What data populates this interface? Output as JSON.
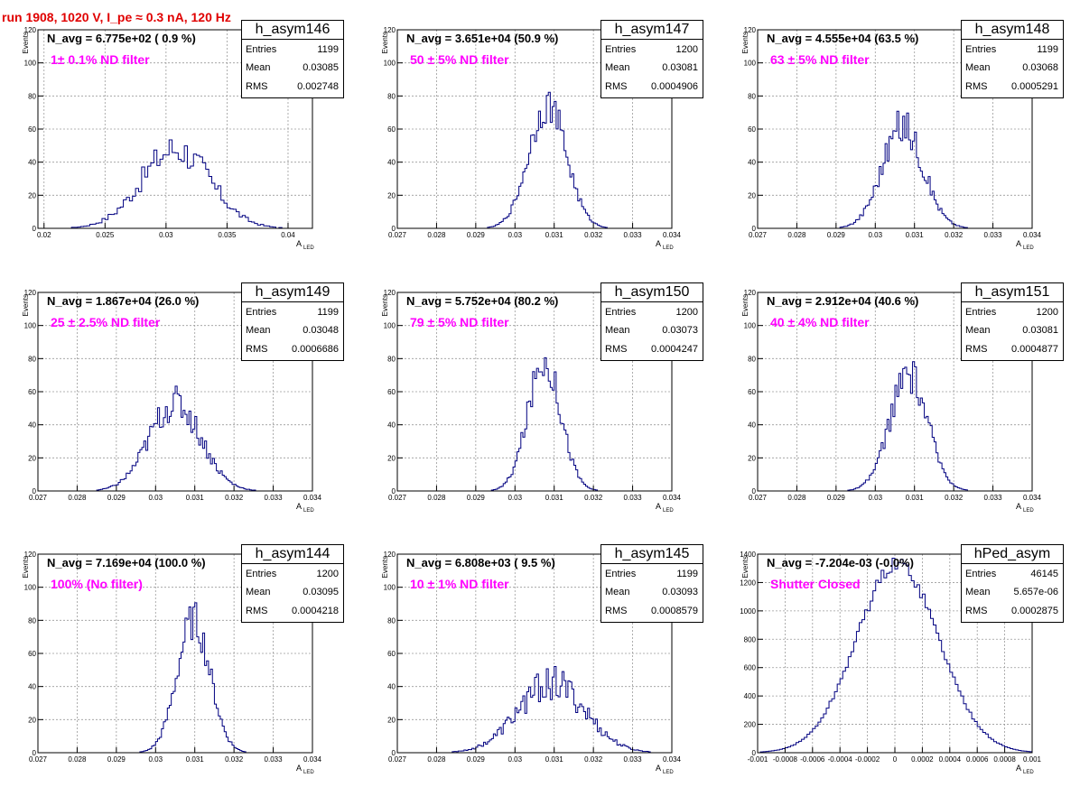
{
  "run_title": "run 1908,  1020 V, I_pe ≈ 0.3 nA, 120 Hz",
  "colors": {
    "histogram": "#000080",
    "title": "#e00000",
    "filter_label": "#ff00ff",
    "grid": "#9a9a9a"
  },
  "y_axis_label": "Events",
  "x_axis_label_main": "A",
  "x_axis_label_sub": "LED",
  "stat_labels": {
    "entries": "Entries",
    "mean": "Mean",
    "rms": "RMS"
  },
  "chart_data": [
    {
      "type": "histogram",
      "name": "h_asym146",
      "navg": "N_avg = 6.775e+02 ( 0.9 %)",
      "filter": "1± 0.1% ND filter",
      "entries": "1199",
      "mean": "0.03085",
      "rms": "0.002748",
      "xlim": [
        0.0195,
        0.042
      ],
      "ylim": [
        0,
        120
      ],
      "xticks": [
        0.02,
        0.025,
        0.03,
        0.035,
        0.04
      ],
      "xtick_labels": [
        "0.02",
        "0.025",
        "0.03",
        "0.035",
        "0.04"
      ],
      "yticks": [
        0,
        20,
        40,
        60,
        80,
        100,
        120
      ],
      "ytick_labels": [
        "0",
        "20",
        "40",
        "60",
        "80",
        "100",
        "120"
      ],
      "grid": true,
      "legend_position": "top-right",
      "bin_mean": 0.0308,
      "bin_sigma": 0.0028,
      "bin_peak": 48,
      "bin_width": 0.00025,
      "noise": 0.22
    },
    {
      "type": "histogram",
      "name": "h_asym147",
      "navg": "N_avg = 3.651e+04 (50.9 %)",
      "filter": "50 ± 5% ND filter",
      "entries": "1200",
      "mean": "0.03081",
      "rms": "0.0004906",
      "xlim": [
        0.027,
        0.034
      ],
      "ylim": [
        0,
        120
      ],
      "xticks": [
        0.027,
        0.028,
        0.029,
        0.03,
        0.031,
        0.032,
        0.033,
        0.034
      ],
      "xtick_labels": [
        "0.027",
        "0.028",
        "0.029",
        "0.03",
        "0.031",
        "0.032",
        "0.033",
        "0.034"
      ],
      "yticks": [
        0,
        20,
        40,
        60,
        80,
        100,
        120
      ],
      "ytick_labels": [
        "0",
        "20",
        "40",
        "60",
        "80",
        "100",
        "120"
      ],
      "grid": true,
      "legend_position": "top-right",
      "bin_mean": 0.03083,
      "bin_sigma": 0.00048,
      "bin_peak": 75,
      "bin_width": 5e-05,
      "noise": 0.15
    },
    {
      "type": "histogram",
      "name": "h_asym148",
      "navg": "N_avg = 4.555e+04 (63.5 %)",
      "filter": "63 ± 5% ND filter",
      "entries": "1199",
      "mean": "0.03068",
      "rms": "0.0005291",
      "xlim": [
        0.027,
        0.034
      ],
      "ylim": [
        0,
        120
      ],
      "xticks": [
        0.027,
        0.028,
        0.029,
        0.03,
        0.031,
        0.032,
        0.033,
        0.034
      ],
      "xtick_labels": [
        "0.027",
        "0.028",
        "0.029",
        "0.03",
        "0.031",
        "0.032",
        "0.033",
        "0.034"
      ],
      "yticks": [
        0,
        20,
        40,
        60,
        80,
        100,
        120
      ],
      "ytick_labels": [
        "0",
        "20",
        "40",
        "60",
        "80",
        "100",
        "120"
      ],
      "grid": true,
      "legend_position": "top-right",
      "bin_mean": 0.0307,
      "bin_sigma": 0.00052,
      "bin_peak": 62,
      "bin_width": 5e-05,
      "noise": 0.18
    },
    {
      "type": "histogram",
      "name": "h_asym149",
      "navg": "N_avg = 1.867e+04 (26.0 %)",
      "filter": "25 ± 2.5% ND filter",
      "entries": "1199",
      "mean": "0.03048",
      "rms": "0.0006686",
      "xlim": [
        0.027,
        0.034
      ],
      "ylim": [
        0,
        120
      ],
      "xticks": [
        0.027,
        0.028,
        0.029,
        0.03,
        0.031,
        0.032,
        0.033,
        0.034
      ],
      "xtick_labels": [
        "0.027",
        "0.028",
        "0.029",
        "0.03",
        "0.031",
        "0.032",
        "0.033",
        "0.034"
      ],
      "yticks": [
        0,
        20,
        40,
        60,
        80,
        100,
        120
      ],
      "ytick_labels": [
        "0",
        "20",
        "40",
        "60",
        "80",
        "100",
        "120"
      ],
      "grid": true,
      "legend_position": "top-right",
      "bin_mean": 0.0305,
      "bin_sigma": 0.00066,
      "bin_peak": 53,
      "bin_width": 5e-05,
      "noise": 0.2
    },
    {
      "type": "histogram",
      "name": "h_asym150",
      "navg": "N_avg = 5.752e+04 (80.2 %)",
      "filter": "79 ± 5% ND filter",
      "entries": "1200",
      "mean": "0.03073",
      "rms": "0.0004247",
      "xlim": [
        0.027,
        0.034
      ],
      "ylim": [
        0,
        120
      ],
      "xticks": [
        0.027,
        0.028,
        0.029,
        0.03,
        0.031,
        0.032,
        0.033,
        0.034
      ],
      "xtick_labels": [
        "0.027",
        "0.028",
        "0.029",
        "0.03",
        "0.031",
        "0.032",
        "0.033",
        "0.034"
      ],
      "yticks": [
        0,
        20,
        40,
        60,
        80,
        100,
        120
      ],
      "ytick_labels": [
        "0",
        "20",
        "40",
        "60",
        "80",
        "100",
        "120"
      ],
      "grid": true,
      "legend_position": "top-right",
      "bin_mean": 0.03075,
      "bin_sigma": 0.00042,
      "bin_peak": 79,
      "bin_width": 5e-05,
      "noise": 0.15
    },
    {
      "type": "histogram",
      "name": "h_asym151",
      "navg": "N_avg = 2.912e+04 (40.6 %)",
      "filter": "40 ± 4% ND filter",
      "entries": "1200",
      "mean": "0.03081",
      "rms": "0.0004877",
      "xlim": [
        0.027,
        0.034
      ],
      "ylim": [
        0,
        120
      ],
      "xticks": [
        0.027,
        0.028,
        0.029,
        0.03,
        0.031,
        0.032,
        0.033,
        0.034
      ],
      "xtick_labels": [
        "0.027",
        "0.028",
        "0.029",
        "0.03",
        "0.031",
        "0.032",
        "0.033",
        "0.034"
      ],
      "yticks": [
        0,
        20,
        40,
        60,
        80,
        100,
        120
      ],
      "ytick_labels": [
        "0",
        "20",
        "40",
        "60",
        "80",
        "100",
        "120"
      ],
      "grid": true,
      "legend_position": "top-right",
      "bin_mean": 0.03085,
      "bin_sigma": 0.00048,
      "bin_peak": 70,
      "bin_width": 5e-05,
      "noise": 0.16
    },
    {
      "type": "histogram",
      "name": "h_asym144",
      "navg": "N_avg = 7.169e+04 (100.0 %)",
      "filter": "100% (No filter)",
      "entries": "1200",
      "mean": "0.03095",
      "rms": "0.0004218",
      "xlim": [
        0.027,
        0.034
      ],
      "ylim": [
        0,
        120
      ],
      "xticks": [
        0.027,
        0.028,
        0.029,
        0.03,
        0.031,
        0.032,
        0.033,
        0.034
      ],
      "xtick_labels": [
        "0.027",
        "0.028",
        "0.029",
        "0.03",
        "0.031",
        "0.032",
        "0.033",
        "0.034"
      ],
      "yticks": [
        0,
        20,
        40,
        60,
        80,
        100,
        120
      ],
      "ytick_labels": [
        "0",
        "20",
        "40",
        "60",
        "80",
        "100",
        "120"
      ],
      "grid": true,
      "legend_position": "top-right",
      "bin_mean": 0.03097,
      "bin_sigma": 0.00042,
      "bin_peak": 80,
      "bin_width": 5e-05,
      "noise": 0.15
    },
    {
      "type": "histogram",
      "name": "h_asym145",
      "navg": "N_avg = 6.808e+03 ( 9.5 %)",
      "filter": "10 ± 1% ND filter",
      "entries": "1199",
      "mean": "0.03093",
      "rms": "0.0008579",
      "xlim": [
        0.027,
        0.034
      ],
      "ylim": [
        0,
        120
      ],
      "xticks": [
        0.027,
        0.028,
        0.029,
        0.03,
        0.031,
        0.032,
        0.033,
        0.034
      ],
      "xtick_labels": [
        "0.027",
        "0.028",
        "0.029",
        "0.03",
        "0.031",
        "0.032",
        "0.033",
        "0.034"
      ],
      "yticks": [
        0,
        20,
        40,
        60,
        80,
        100,
        120
      ],
      "ytick_labels": [
        "0",
        "20",
        "40",
        "60",
        "80",
        "100",
        "120"
      ],
      "grid": true,
      "legend_position": "top-right",
      "bin_mean": 0.03093,
      "bin_sigma": 0.00085,
      "bin_peak": 42,
      "bin_width": 5e-05,
      "noise": 0.25
    },
    {
      "type": "histogram",
      "name": "hPed_asym",
      "navg": "N_avg = -7.204e-03 (-0.0%)",
      "filter": "Shutter Closed",
      "entries": "46145",
      "mean": "5.657e-06",
      "rms": "0.0002875",
      "xlim": [
        -0.001,
        0.001
      ],
      "ylim": [
        0,
        1400
      ],
      "xticks": [
        -0.001,
        -0.0008,
        -0.0006,
        -0.0004,
        -0.0002,
        0,
        0.0002,
        0.0004,
        0.0006,
        0.0008,
        0.001
      ],
      "xtick_labels": [
        "-0.001",
        "-0.0008",
        "-0.0006",
        "-0.0004",
        "-0.0002",
        "0",
        "0.0002",
        "0.0004",
        "0.0006",
        "0.0008",
        "0.001"
      ],
      "yticks": [
        0,
        200,
        400,
        600,
        800,
        1000,
        1200,
        1400
      ],
      "ytick_labels": [
        "0",
        "200",
        "400",
        "600",
        "800",
        "1000",
        "1200",
        "1400"
      ],
      "grid": true,
      "legend_position": "top-right",
      "bin_mean": 2e-05,
      "bin_sigma": 0.0003,
      "bin_peak": 1330,
      "bin_width": 2e-05,
      "noise": 0.04
    }
  ]
}
